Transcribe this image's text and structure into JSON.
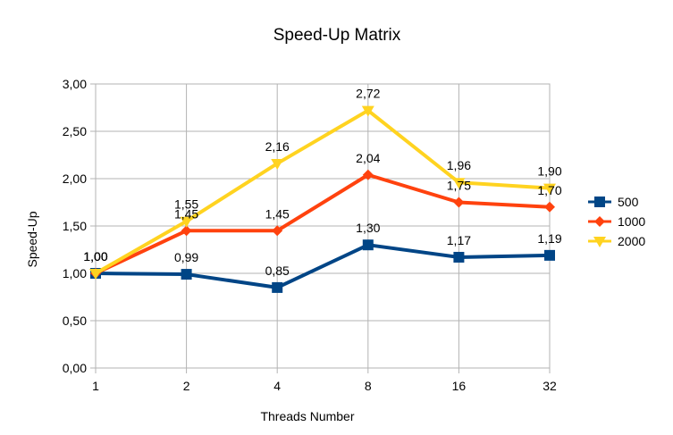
{
  "chart_data": {
    "type": "line",
    "title": "Speed-Up Matrix",
    "xlabel": "Threads Number",
    "ylabel": "Speed-Up",
    "categories": [
      "1",
      "2",
      "4",
      "8",
      "16",
      "32"
    ],
    "ylim": [
      0,
      3
    ],
    "yticks": [
      "0,00",
      "0,50",
      "1,00",
      "1,50",
      "2,00",
      "2,50",
      "3,00"
    ],
    "grid": true,
    "legend_position": "right",
    "series": [
      {
        "name": "500",
        "color": "#004586",
        "marker": "square",
        "values": [
          1.0,
          0.99,
          0.85,
          1.3,
          1.17,
          1.19
        ],
        "labels": [
          "1,00",
          "0,99",
          "0,85",
          "1,30",
          "1,17",
          "1,19"
        ]
      },
      {
        "name": "1000",
        "color": "#ff420e",
        "marker": "diamond",
        "values": [
          1.0,
          1.45,
          1.45,
          2.04,
          1.75,
          1.7
        ],
        "labels": [
          "1,00",
          "1,45",
          "1,45",
          "2,04",
          "1,75",
          "1,70"
        ]
      },
      {
        "name": "2000",
        "color": "#ffd320",
        "marker": "triangle-down",
        "values": [
          1.0,
          1.55,
          2.16,
          2.72,
          1.96,
          1.9
        ],
        "labels": [
          "1,00",
          "1,55",
          "2,16",
          "2,72",
          "1,96",
          "1,90"
        ]
      }
    ]
  }
}
